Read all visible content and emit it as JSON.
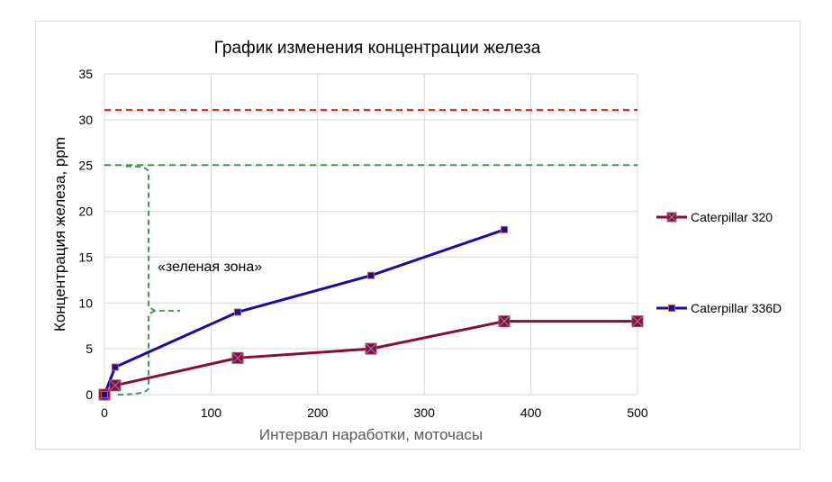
{
  "chart_data": {
    "type": "line",
    "title": "График изменения концентрации железа",
    "xlabel": "Интервал наработки, моточасы",
    "ylabel": "Концентрация железа, ppm",
    "xlim": [
      0,
      500
    ],
    "ylim": [
      0,
      35
    ],
    "x_ticks": [
      "0",
      "100",
      "200",
      "300",
      "400",
      "500"
    ],
    "y_ticks": [
      "0",
      "5",
      "10",
      "15",
      "20",
      "25",
      "30",
      "35"
    ],
    "grid": true,
    "legend_position": "right",
    "series": [
      {
        "name": "Caterpillar 320",
        "color": "#8b0a3c",
        "marker": "square-x",
        "points": [
          [
            0,
            0
          ],
          [
            10,
            1
          ],
          [
            125,
            4
          ],
          [
            250,
            5
          ],
          [
            375,
            8
          ],
          [
            500,
            8
          ]
        ]
      },
      {
        "name": "Caterpillar 336D",
        "color": "#1a0aa8",
        "marker": "square",
        "points": [
          [
            0,
            0
          ],
          [
            10,
            3
          ],
          [
            125,
            9
          ],
          [
            250,
            13
          ],
          [
            375,
            18
          ]
        ]
      }
    ],
    "reference_lines": [
      {
        "y": 31,
        "color": "#e02020",
        "style": "dashed"
      },
      {
        "y": 25,
        "color": "#3f9a50",
        "style": "dashed"
      }
    ],
    "annotations": [
      {
        "text": "«зеленая зона»",
        "range_y": [
          0,
          25
        ],
        "brace_color": "#3f9a50"
      }
    ]
  }
}
